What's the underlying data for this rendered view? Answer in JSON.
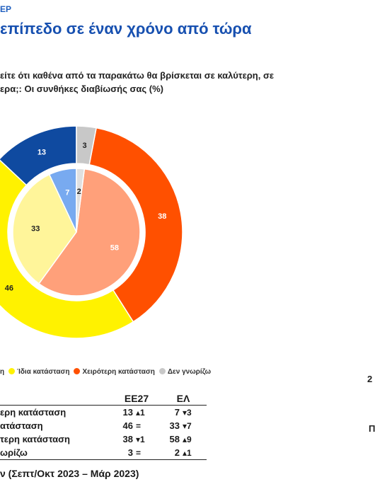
{
  "header": {
    "top_label": "ΕΡ",
    "title": "επίπεδο σε έναν χρόνο από τώρα",
    "question_lines": [
      "είτε ότι καθένα από τα παρακάτω θα βρίσκεται σε καλύτερη, σε",
      "ερα;: Οι συνθήκες διαβίωσής σας (%)"
    ]
  },
  "colors": {
    "better_eu": "#0f4aa0",
    "better_el": "#78aaf0",
    "same_eu": "#fff200",
    "same_el": "#fff59a",
    "worse_eu": "#ff5000",
    "worse_el": "#ffa07a",
    "dk_eu": "#c8c8c8",
    "dk_el": "#e0e0e0"
  },
  "chart_data": {
    "type": "pie",
    "subtype": "nested-donut",
    "categories": [
      "Καλύτερη κατάσταση",
      "Ίδια κατάσταση",
      "Χειρότερη κατάσταση",
      "Δεν γνωρίζω"
    ],
    "series": [
      {
        "ring": "outer",
        "values": [
          13,
          46,
          38,
          3
        ]
      },
      {
        "ring": "inner",
        "values": [
          7,
          33,
          58,
          2
        ]
      }
    ]
  },
  "legend": {
    "items": [
      {
        "label": "η",
        "color_key": "better_eu"
      },
      {
        "label": "Ίδια κατάσταση",
        "color_key": "same_eu"
      },
      {
        "label": "Χειρότερη κατάσταση",
        "color_key": "worse_eu"
      },
      {
        "label": "Δεν γνωρίζω",
        "color_key": "dk_eu"
      }
    ]
  },
  "table": {
    "headers": [
      "ΕΕ27",
      "ΕΛ"
    ],
    "rows": [
      {
        "label": "ερη κατάσταση",
        "ee": "13",
        "ee_chg": "▴1",
        "el": "7",
        "el_chg": "▾3"
      },
      {
        "label": "ατάσταση",
        "ee": "46",
        "ee_chg": "=",
        "el": "33",
        "el_chg": "▾7"
      },
      {
        "label": "τερη κατάσταση",
        "ee": "38",
        "ee_chg": "▾1",
        "el": "58",
        "el_chg": "▴9"
      },
      {
        "label": "ωρίζω",
        "ee": "3",
        "ee_chg": "=",
        "el": "2",
        "el_chg": "▴1"
      }
    ]
  },
  "source": "ν (Σεπτ/Οκτ 2023 – Μάρ 2023)",
  "edge_fragments": [
    "2",
    "Π"
  ]
}
